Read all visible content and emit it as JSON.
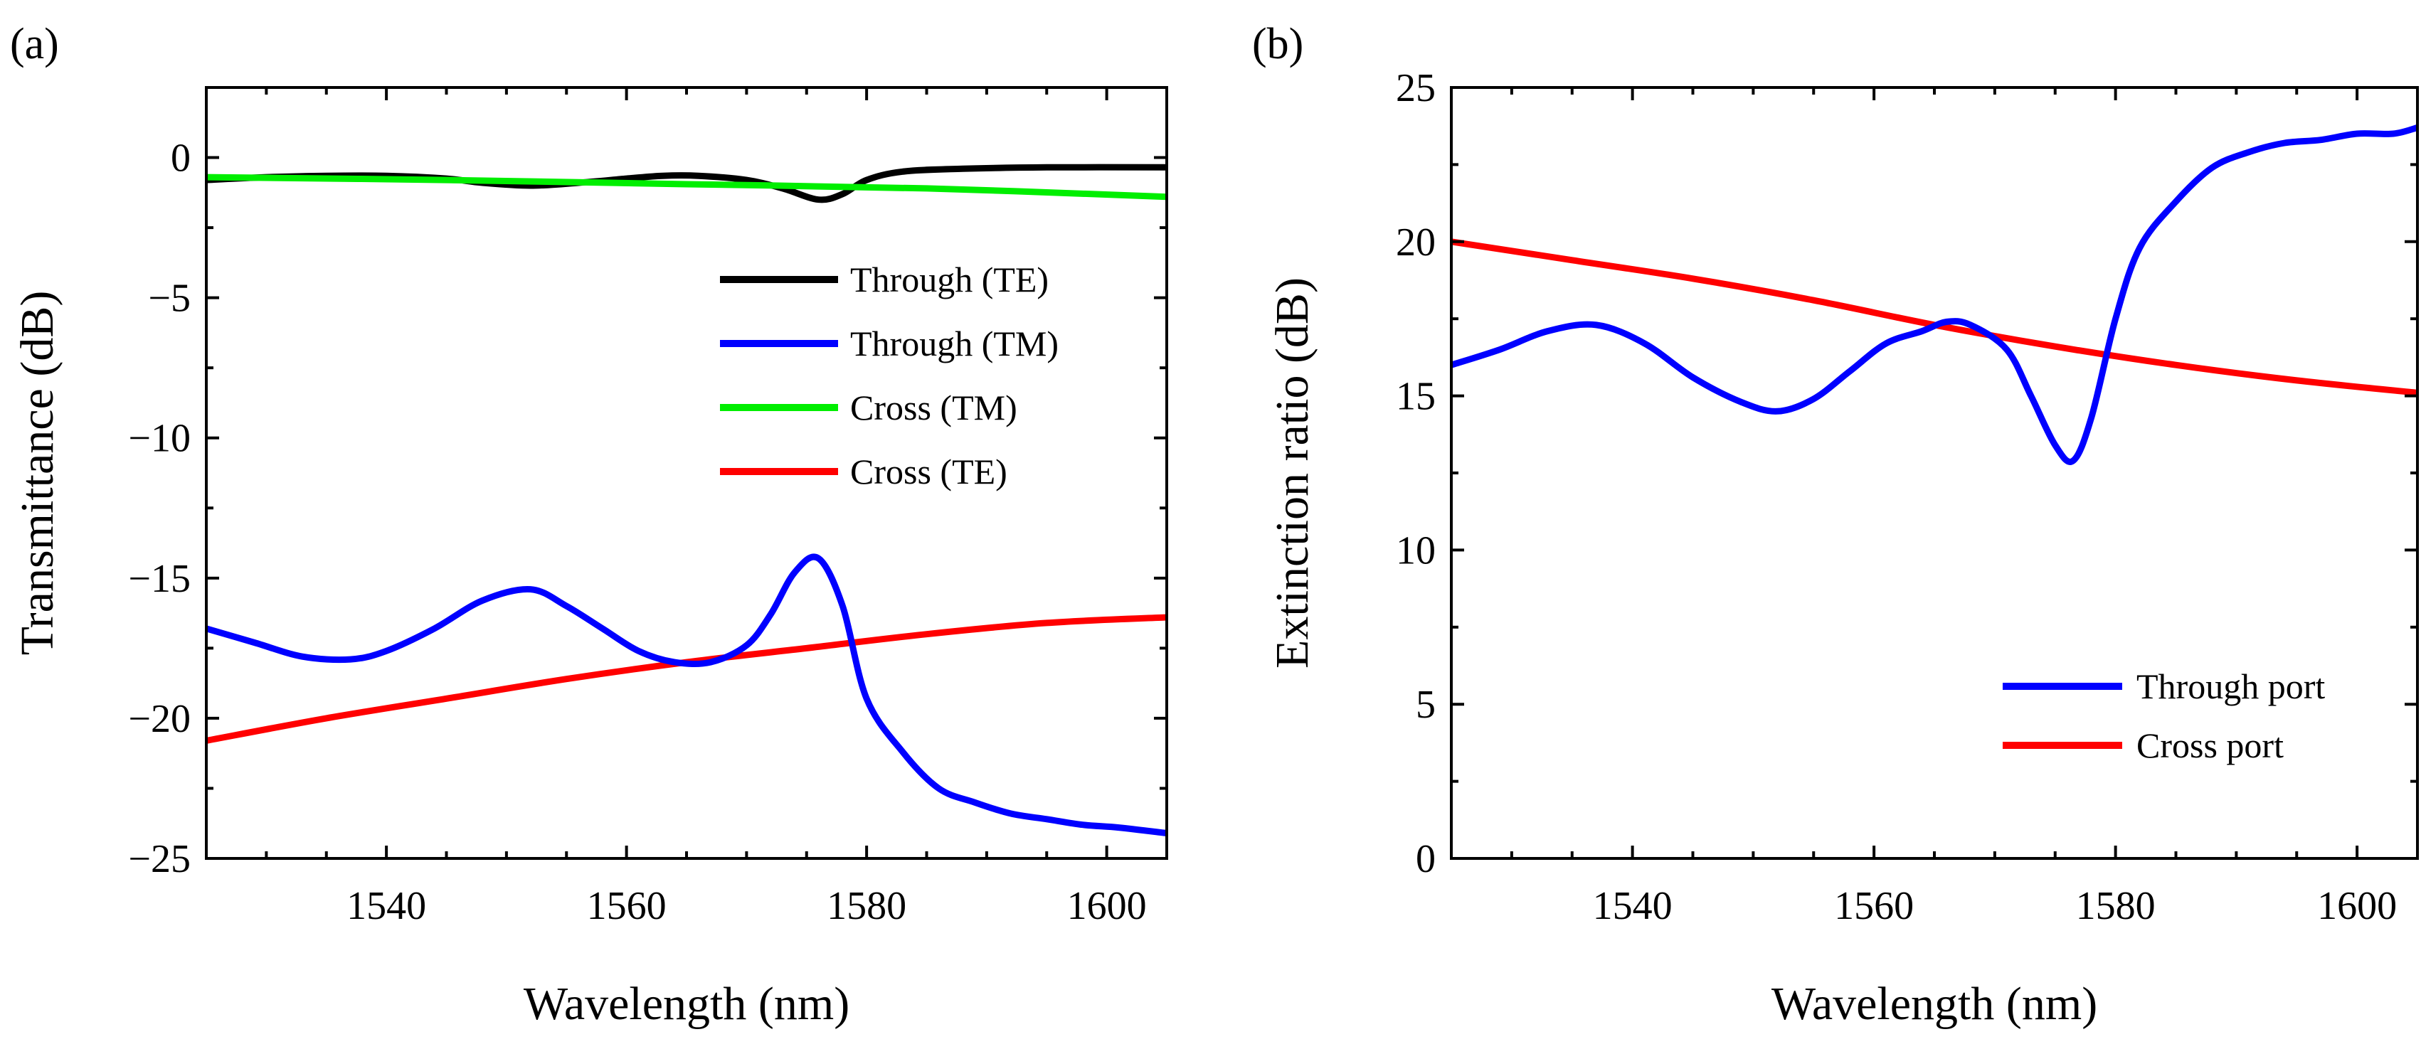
{
  "chart_data": [
    {
      "type": "line",
      "panel_label": "(a)",
      "xlabel": "Wavelength (nm)",
      "ylabel": "Transmittance (dB)",
      "xlim": [
        1525,
        1605
      ],
      "ylim": [
        -25,
        2.5
      ],
      "xticks": [
        1540,
        1560,
        1580,
        1600
      ],
      "yticks": [
        0,
        -5,
        -10,
        -15,
        -20,
        -25
      ],
      "yticks_labels": [
        "0",
        "−5",
        "−10",
        "−15",
        "−20",
        "−25"
      ],
      "legend_position": "center-right",
      "series": [
        {
          "name": "Through (TE)",
          "color": "#000000",
          "x": [
            1525,
            1530,
            1535,
            1540,
            1545,
            1548,
            1552,
            1556,
            1560,
            1563,
            1566,
            1570,
            1573,
            1576,
            1578,
            1580,
            1583,
            1588,
            1595,
            1605
          ],
          "y": [
            -0.8,
            -0.7,
            -0.65,
            -0.65,
            -0.75,
            -0.9,
            -1.0,
            -0.9,
            -0.75,
            -0.65,
            -0.65,
            -0.8,
            -1.1,
            -1.5,
            -1.3,
            -0.8,
            -0.5,
            -0.4,
            -0.35,
            -0.35
          ]
        },
        {
          "name": "Through (TM)",
          "color": "#0000ff",
          "x": [
            1525,
            1529,
            1533,
            1537,
            1540,
            1544,
            1548,
            1552,
            1555,
            1558,
            1561,
            1564,
            1567,
            1570,
            1572,
            1574,
            1576,
            1578,
            1580,
            1583,
            1586,
            1589,
            1592,
            1595,
            1598,
            1601,
            1605
          ],
          "y": [
            -16.8,
            -17.3,
            -17.8,
            -17.9,
            -17.6,
            -16.8,
            -15.8,
            -15.4,
            -16.0,
            -16.8,
            -17.6,
            -18.0,
            -18.0,
            -17.4,
            -16.3,
            -14.8,
            -14.3,
            -16.0,
            -19.3,
            -21.2,
            -22.5,
            -23.0,
            -23.4,
            -23.6,
            -23.8,
            -23.9,
            -24.1
          ]
        },
        {
          "name": "Cross (TM)",
          "color": "#00ee00",
          "x": [
            1525,
            1545,
            1565,
            1585,
            1605
          ],
          "y": [
            -0.7,
            -0.8,
            -0.95,
            -1.1,
            -1.4
          ]
        },
        {
          "name": "Cross (TE)",
          "color": "#ff0000",
          "x": [
            1525,
            1535,
            1545,
            1555,
            1565,
            1575,
            1585,
            1595,
            1605
          ],
          "y": [
            -20.8,
            -20.0,
            -19.3,
            -18.6,
            -18.0,
            -17.5,
            -17.0,
            -16.6,
            -16.4
          ]
        }
      ]
    },
    {
      "type": "line",
      "panel_label": "(b)",
      "xlabel": "Wavelength (nm)",
      "ylabel": "Extinction ratio (dB)",
      "xlim": [
        1525,
        1605
      ],
      "ylim": [
        0,
        25
      ],
      "xticks": [
        1540,
        1560,
        1580,
        1600
      ],
      "yticks": [
        0,
        5,
        10,
        15,
        20,
        25
      ],
      "yticks_labels": [
        "0",
        "5",
        "10",
        "15",
        "20",
        "25"
      ],
      "legend_position": "bottom-right",
      "series": [
        {
          "name": "Through port",
          "color": "#0000ff",
          "x": [
            1525,
            1529,
            1533,
            1537,
            1541,
            1545,
            1549,
            1552,
            1555,
            1558,
            1561,
            1564,
            1566,
            1568,
            1571,
            1573,
            1575,
            1576.5,
            1578,
            1580,
            1582,
            1585,
            1588,
            1591,
            1594,
            1597,
            1600,
            1603,
            1605
          ],
          "y": [
            16.0,
            16.5,
            17.1,
            17.3,
            16.7,
            15.6,
            14.8,
            14.5,
            14.9,
            15.8,
            16.7,
            17.1,
            17.4,
            17.3,
            16.5,
            15.0,
            13.4,
            12.9,
            14.3,
            17.5,
            19.8,
            21.3,
            22.4,
            22.9,
            23.2,
            23.3,
            23.5,
            23.5,
            23.7
          ]
        },
        {
          "name": "Cross port",
          "color": "#ff0000",
          "x": [
            1525,
            1535,
            1545,
            1555,
            1565,
            1575,
            1585,
            1595,
            1605
          ],
          "y": [
            20.0,
            19.4,
            18.8,
            18.1,
            17.3,
            16.6,
            16.0,
            15.5,
            15.1
          ]
        }
      ]
    }
  ]
}
